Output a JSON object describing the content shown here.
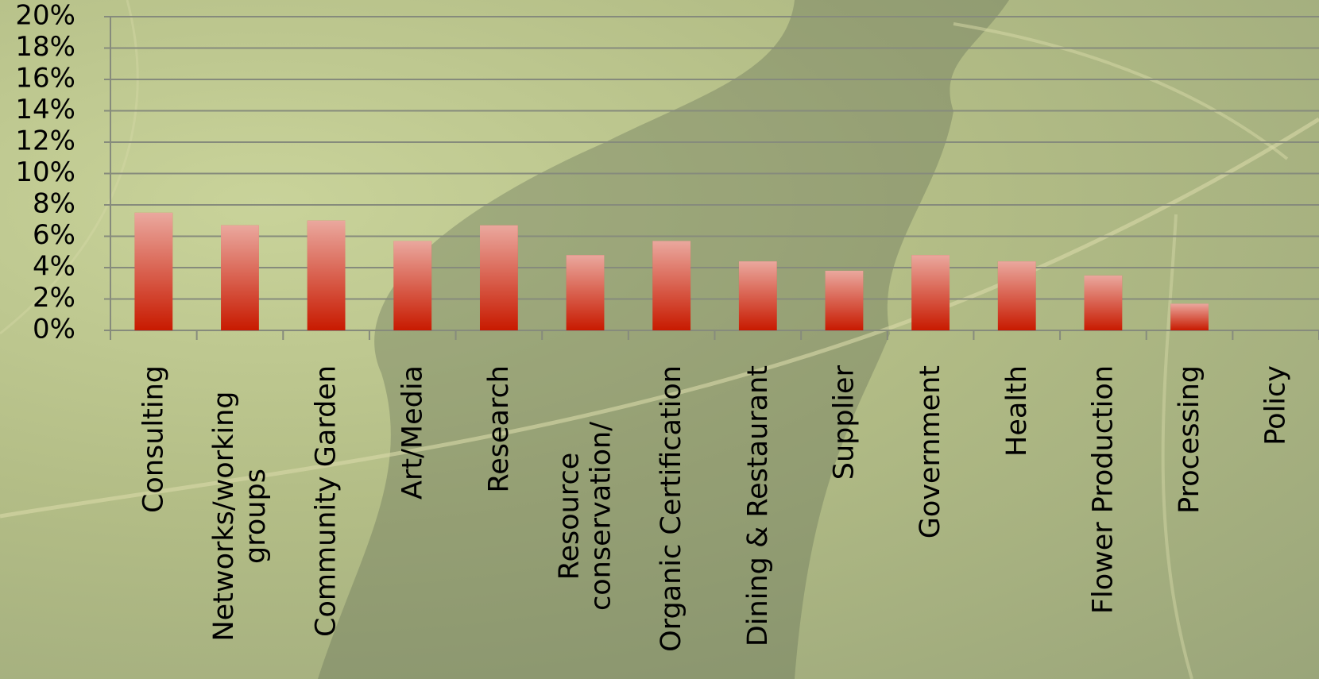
{
  "chart_data": {
    "type": "bar",
    "categories": [
      "Consulting",
      "Networks/working groups",
      "Community Garden",
      "Art/Media",
      "Research",
      "Resource conservation/",
      "Organic Certification",
      "Dining & Restaurant",
      "Supplier",
      "Government",
      "Health",
      "Flower Production",
      "Processing",
      "Policy"
    ],
    "values": [
      7.5,
      6.7,
      7.0,
      5.7,
      6.7,
      4.8,
      5.7,
      4.4,
      3.8,
      4.8,
      4.4,
      3.5,
      1.7,
      0
    ],
    "color": "#c81a00",
    "ylim": [
      0,
      20
    ],
    "yticks": [
      {
        "value": 0,
        "label": "0%"
      },
      {
        "value": 2,
        "label": "2%"
      },
      {
        "value": 4,
        "label": "4%"
      },
      {
        "value": 6,
        "label": "6%"
      },
      {
        "value": 8,
        "label": "8%"
      },
      {
        "value": 10,
        "label": "10%"
      },
      {
        "value": 12,
        "label": "12%"
      },
      {
        "value": 14,
        "label": "14%"
      },
      {
        "value": 16,
        "label": "16%"
      },
      {
        "value": 18,
        "label": "18%"
      },
      {
        "value": 20,
        "label": "20%"
      }
    ],
    "grid": true
  }
}
